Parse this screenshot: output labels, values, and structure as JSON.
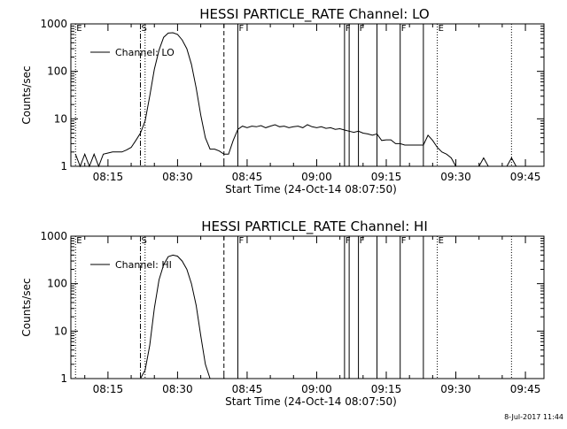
{
  "footer": {
    "date_stamp": "8-Jul-2017 11:44"
  },
  "chart_data": [
    {
      "type": "line",
      "title": "HESSI PARTICLE_RATE Channel: LO",
      "xlabel": "Start Time (24-Oct-14 08:07:50)",
      "ylabel": "Counts/sec",
      "y_scale": "log",
      "ylim": [
        1,
        1000
      ],
      "xlim": [
        "08:07",
        "09:49"
      ],
      "x_ticks": [
        "08:15",
        "08:30",
        "08:45",
        "09:00",
        "09:15",
        "09:30",
        "09:45"
      ],
      "y_ticks": [
        "1",
        "10",
        "100",
        "1000"
      ],
      "legend": {
        "entries": [
          "Channel: LO"
        ],
        "position": "top-left"
      },
      "markers": [
        {
          "time": "08:08",
          "label": "E",
          "style": "dotted"
        },
        {
          "time": "08:22",
          "label": "S",
          "style": "dashdot"
        },
        {
          "time": "08:23",
          "label": "",
          "style": "dotted"
        },
        {
          "time": "08:40",
          "label": "",
          "style": "dashed"
        },
        {
          "time": "08:43",
          "label": "F",
          "style": "solid"
        },
        {
          "time": "09:06",
          "label": "F",
          "style": "solid"
        },
        {
          "time": "09:07",
          "label": "",
          "style": "solid"
        },
        {
          "time": "09:09",
          "label": "F",
          "style": "solid"
        },
        {
          "time": "09:13",
          "label": "",
          "style": "solid"
        },
        {
          "time": "09:18",
          "label": "F",
          "style": "solid"
        },
        {
          "time": "09:23",
          "label": "",
          "style": "solid"
        },
        {
          "time": "09:26",
          "label": "E",
          "style": "dotted"
        },
        {
          "time": "09:42",
          "label": "",
          "style": "dotted"
        }
      ],
      "series": [
        {
          "name": "Channel: LO",
          "x": [
            "08:08",
            "08:09",
            "08:10",
            "08:11",
            "08:12",
            "08:13",
            "08:14",
            "08:15",
            "08:16",
            "08:17",
            "08:18",
            "08:19",
            "08:20",
            "08:21",
            "08:22",
            "08:23",
            "08:24",
            "08:25",
            "08:26",
            "08:27",
            "08:28",
            "08:29",
            "08:30",
            "08:31",
            "08:32",
            "08:33",
            "08:34",
            "08:35",
            "08:36",
            "08:37",
            "08:38",
            "08:39",
            "08:40",
            "08:41",
            "08:42",
            "08:43",
            "08:44",
            "08:45",
            "08:46",
            "08:47",
            "08:48",
            "08:49",
            "08:50",
            "08:51",
            "08:52",
            "08:53",
            "08:54",
            "08:55",
            "08:56",
            "08:57",
            "08:58",
            "08:59",
            "09:00",
            "09:01",
            "09:02",
            "09:03",
            "09:04",
            "09:05",
            "09:06",
            "09:07",
            "09:08",
            "09:09",
            "09:10",
            "09:11",
            "09:12",
            "09:13",
            "09:14",
            "09:15",
            "09:16",
            "09:17",
            "09:18",
            "09:19",
            "09:20",
            "09:21",
            "09:22",
            "09:23",
            "09:24",
            "09:25",
            "09:26",
            "09:27",
            "09:28",
            "09:29",
            "09:30",
            "09:31",
            "09:32",
            "09:33",
            "09:34",
            "09:35",
            "09:36",
            "09:37",
            "09:38",
            "09:39",
            "09:40",
            "09:41",
            "09:42",
            "09:43",
            "09:44",
            "09:45"
          ],
          "y": [
            1.8,
            1,
            1.8,
            1,
            1.8,
            1,
            1.8,
            1.9,
            2,
            2,
            2,
            2.2,
            2.5,
            3.5,
            5,
            9,
            30,
            110,
            280,
            520,
            640,
            650,
            600,
            460,
            300,
            140,
            45,
            12,
            4,
            2.3,
            2.3,
            2.1,
            1.8,
            1.8,
            3.5,
            6,
            7,
            6.5,
            7,
            6.8,
            7.2,
            6.5,
            7,
            7.5,
            6.8,
            7,
            6.5,
            6.8,
            7,
            6.5,
            7.5,
            6.8,
            6.5,
            6.8,
            6.3,
            6.5,
            6,
            6.2,
            5.8,
            5.5,
            5.2,
            5.5,
            5,
            4.8,
            4.5,
            4.8,
            3.5,
            3.6,
            3.6,
            3,
            3,
            2.8,
            2.8,
            2.8,
            2.8,
            2.8,
            4.5,
            3.5,
            2.5,
            2,
            1.8,
            1.5,
            1,
            1,
            1,
            1,
            1,
            1,
            1.5,
            1,
            1,
            1,
            1,
            1,
            1.5,
            1,
            1,
            1
          ]
        }
      ]
    },
    {
      "type": "line",
      "title": "HESSI PARTICLE_RATE Channel: HI",
      "xlabel": "Start Time (24-Oct-14 08:07:50)",
      "ylabel": "Counts/sec",
      "y_scale": "log",
      "ylim": [
        1,
        1000
      ],
      "xlim": [
        "08:07",
        "09:49"
      ],
      "x_ticks": [
        "08:15",
        "08:30",
        "08:45",
        "09:00",
        "09:15",
        "09:30",
        "09:45"
      ],
      "y_ticks": [
        "1",
        "10",
        "100",
        "1000"
      ],
      "legend": {
        "entries": [
          "Channel: HI"
        ],
        "position": "top-left"
      },
      "markers": [
        {
          "time": "08:08",
          "label": "E",
          "style": "dotted"
        },
        {
          "time": "08:22",
          "label": "S",
          "style": "dashdot"
        },
        {
          "time": "08:23",
          "label": "",
          "style": "dotted"
        },
        {
          "time": "08:40",
          "label": "",
          "style": "dashed"
        },
        {
          "time": "08:43",
          "label": "F",
          "style": "solid"
        },
        {
          "time": "09:06",
          "label": "F",
          "style": "solid"
        },
        {
          "time": "09:07",
          "label": "",
          "style": "solid"
        },
        {
          "time": "09:09",
          "label": "F",
          "style": "solid"
        },
        {
          "time": "09:13",
          "label": "",
          "style": "solid"
        },
        {
          "time": "09:18",
          "label": "F",
          "style": "solid"
        },
        {
          "time": "09:23",
          "label": "",
          "style": "solid"
        },
        {
          "time": "09:26",
          "label": "E",
          "style": "dotted"
        },
        {
          "time": "09:42",
          "label": "",
          "style": "dotted"
        }
      ],
      "series": [
        {
          "name": "Channel: HI",
          "x": [
            "08:22",
            "08:23",
            "08:24",
            "08:25",
            "08:26",
            "08:27",
            "08:28",
            "08:29",
            "08:30",
            "08:31",
            "08:32",
            "08:33",
            "08:34",
            "08:35",
            "08:36",
            "08:37"
          ],
          "y": [
            1,
            1.5,
            5,
            30,
            120,
            250,
            370,
            400,
            380,
            300,
            200,
            100,
            35,
            8,
            2,
            1
          ]
        }
      ]
    }
  ]
}
